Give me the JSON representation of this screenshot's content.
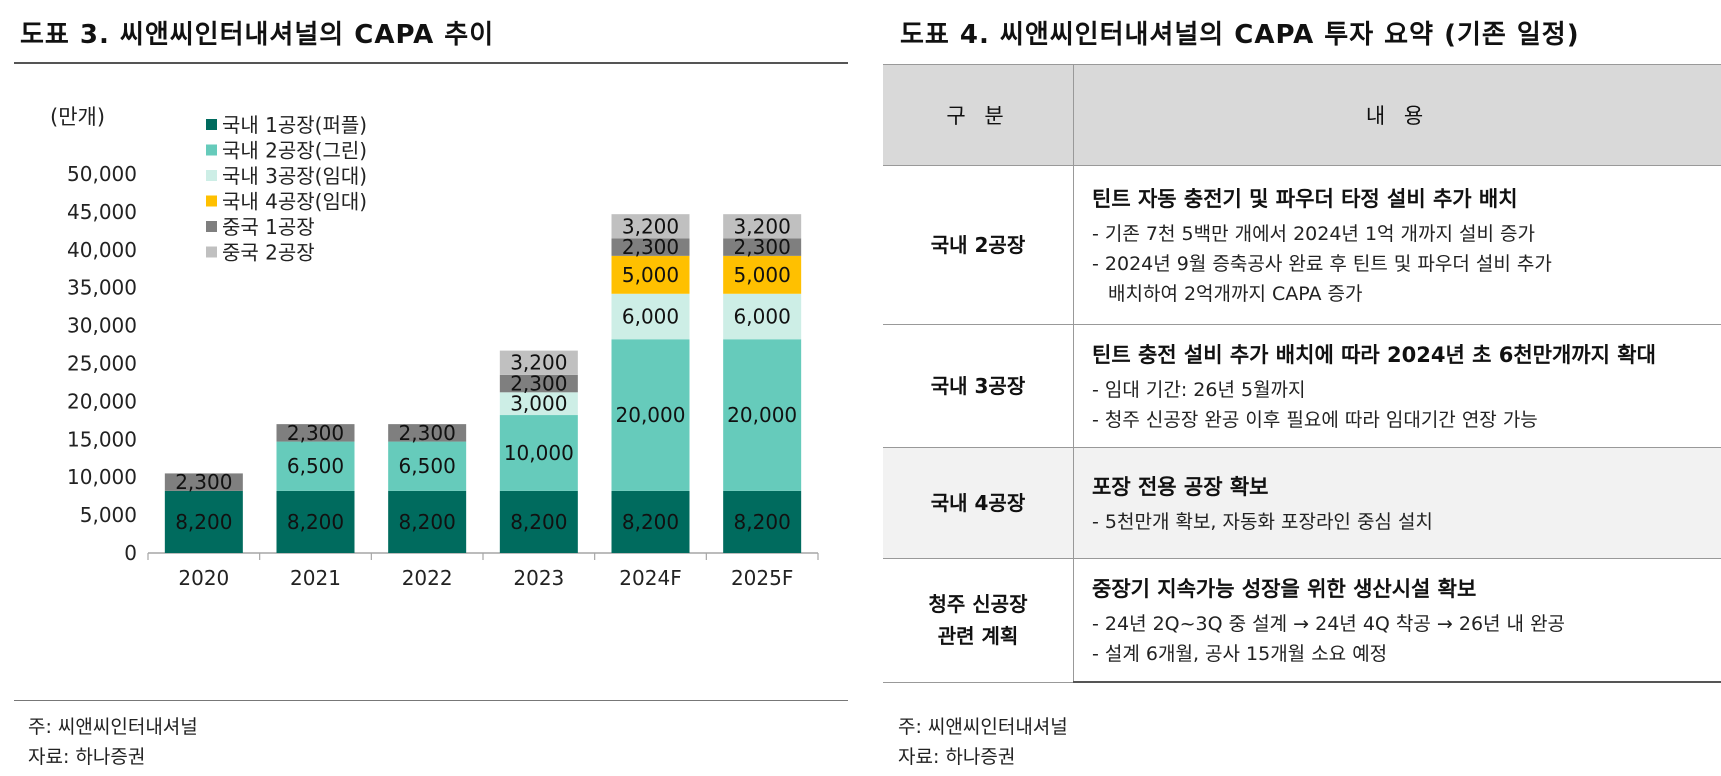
{
  "left_panel": {
    "title": "도표 3. 씨앤씨인터내셔널의 CAPA 추이",
    "note": "주: 씨앤씨인터내셔널",
    "source": "자료: 하나증권"
  },
  "right_panel": {
    "title": "도표 4. 씨앤씨인터내셔널의 CAPA 투자 요약 (기존 일정)",
    "note": "주: 씨앤씨인터내셔널",
    "source": "자료: 하나증권",
    "table": {
      "headers": [
        "구 분",
        "내 용"
      ],
      "rows": [
        {
          "category": [
            "국내 2공장"
          ],
          "heading": "틴트 자동 충전기 및 파우더 타정 설비 추가 배치",
          "lines": [
            "- 기존 7천 5백만 개에서 2024년 1억 개까지 설비 증가",
            "- 2024년 9월 증축공사 완료 후 틴트 및 파우더 설비 추가",
            "배치하여 2억개까지 CAPA 증가"
          ]
        },
        {
          "category": [
            "국내 3공장"
          ],
          "heading": "틴트 충전 설비 추가 배치에 따라 2024년 초 6천만개까지 확대",
          "lines": [
            "- 임대 기간: 26년 5월까지",
            "- 청주 신공장 완공 이후 필요에 따라 임대기간 연장 가능"
          ]
        },
        {
          "category": [
            "국내 4공장"
          ],
          "heading": "포장 전용 공장 확보",
          "lines": [
            "- 5천만개 확보, 자동화 포장라인 중심 설치"
          ]
        },
        {
          "category": [
            "청주 신공장",
            "관련 계획"
          ],
          "heading": "중장기 지속가능 성장을 위한 생산시설 확보",
          "lines": [
            "- 24년 2Q~3Q 중 설계 → 24년 4Q 착공 → 26년 내 완공",
            "- 설계 6개월, 공사 15개월 소요 예정"
          ]
        }
      ]
    }
  },
  "chart_data": {
    "type": "bar",
    "stacked": true,
    "unit_label": "(만개)",
    "categories": [
      "2020",
      "2021",
      "2022",
      "2023",
      "2024F",
      "2025F"
    ],
    "ylim": [
      0,
      50000
    ],
    "yticks": [
      "0",
      "5,000",
      "10,000",
      "15,000",
      "20,000",
      "25,000",
      "30,000",
      "35,000",
      "40,000",
      "45,000",
      "50,000"
    ],
    "legend_position": "top-left",
    "series": [
      {
        "name": "국내 1공장(퍼플)",
        "color": "#006b5e",
        "values": [
          8200,
          8200,
          8200,
          8200,
          8200,
          8200
        ],
        "labels": [
          "8,200",
          "8,200",
          "8,200",
          "8,200",
          "8,200",
          "8,200"
        ]
      },
      {
        "name": "국내 2공장(그린)",
        "color": "#66cbbb",
        "values": [
          0,
          6500,
          6500,
          10000,
          20000,
          20000
        ],
        "labels": [
          "",
          "6,500",
          "6,500",
          "10,000",
          "20,000",
          "20,000"
        ]
      },
      {
        "name": "국내 3공장(임대)",
        "color": "#cdeee6",
        "values": [
          0,
          0,
          0,
          3000,
          6000,
          6000
        ],
        "labels": [
          "",
          "",
          "",
          "3,000",
          "6,000",
          "6,000"
        ]
      },
      {
        "name": "국내 4공장(임대)",
        "color": "#ffc000",
        "values": [
          0,
          0,
          0,
          0,
          5000,
          5000
        ],
        "labels": [
          "",
          "",
          "",
          "",
          "5,000",
          "5,000"
        ]
      },
      {
        "name": "중국 1공장",
        "color": "#7f7f7f",
        "values": [
          2300,
          2300,
          2300,
          2300,
          2300,
          2300
        ],
        "labels": [
          "2,300",
          "2,300",
          "2,300",
          "2,300",
          "2,300",
          "2,300"
        ]
      },
      {
        "name": "중국 2공장",
        "color": "#c0c0c0",
        "values": [
          0,
          0,
          0,
          3200,
          3200,
          3200
        ],
        "labels": [
          "",
          "",
          "",
          "3,200",
          "3,200",
          "3,200"
        ]
      }
    ]
  }
}
